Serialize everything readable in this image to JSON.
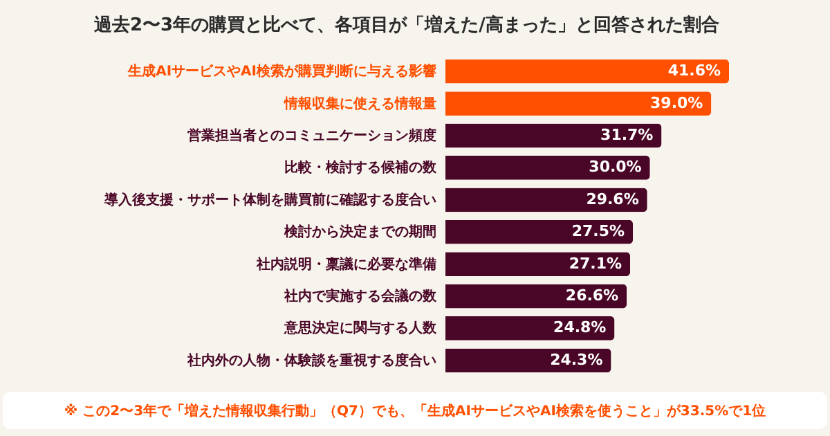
{
  "chart_data": {
    "type": "bar",
    "orientation": "horizontal",
    "title": "過去2〜3年の購買と比べて、各項目が「増えた/高まった」と回答された割合",
    "categories": [
      "生成AIサービスやAI検索が購買判断に与える影響",
      "情報収集に使える情報量",
      "営業担当者とのコミュニケーション頻度",
      "比較・検討する候補の数",
      "導入後支援・サポート体制を購買前に確認する度合い",
      "検討から決定までの期間",
      "社内説明・稟議に必要な準備",
      "社内で実施する会議の数",
      "意思決定に関与する人数",
      "社内外の人物・体験談を重視する度合い"
    ],
    "values": [
      41.6,
      39.0,
      31.7,
      30.0,
      29.6,
      27.5,
      27.1,
      26.6,
      24.8,
      24.3
    ],
    "value_labels": [
      "41.6%",
      "39.0%",
      "31.7%",
      "30.0%",
      "29.6%",
      "27.5%",
      "27.1%",
      "26.6%",
      "24.8%",
      "24.3%"
    ],
    "colors": [
      "#ff4f00",
      "#ff4f00",
      "#4a0626",
      "#4a0626",
      "#4a0626",
      "#4a0626",
      "#4a0626",
      "#4a0626",
      "#4a0626",
      "#4a0626"
    ],
    "annotations": [
      "※ この2〜3年で「増えた情報収集行動」（Q7）でも、「生成AIサービスやAI検索を使うこと」が33.5%で1位"
    ],
    "grid": false
  }
}
